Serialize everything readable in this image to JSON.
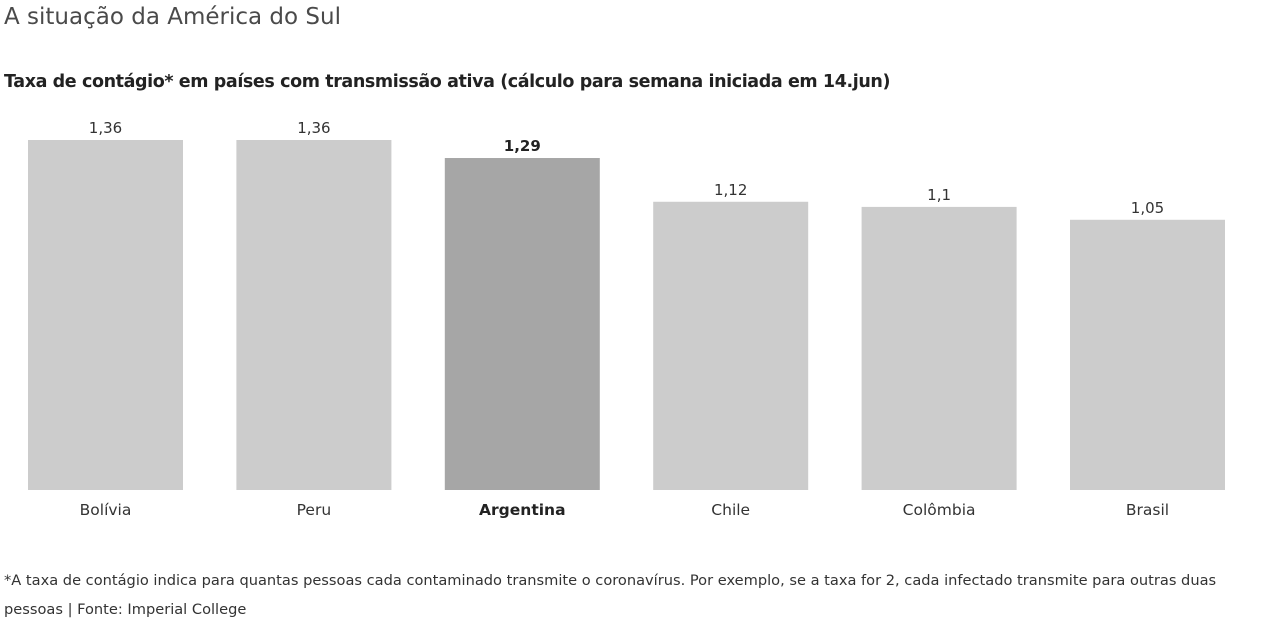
{
  "title": "A situação da América do Sul",
  "subtitle": "Taxa de contágio* em países com transmissão ativa (cálculo para semana iniciada em 14.jun)",
  "footnote": "*A taxa de contágio indica para quantas pessoas cada contaminado transmite o coronavírus. Por exemplo, se a taxa for 2, cada infectado transmite para outras duas pessoas | Fonte: Imperial College",
  "colors": {
    "bar": "#cccccc",
    "highlight": "#a6a6a6"
  },
  "chart_data": {
    "type": "bar",
    "title": "",
    "xlabel": "",
    "ylabel": "",
    "categories": [
      "Bolívia",
      "Peru",
      "Argentina",
      "Chile",
      "Colômbia",
      "Brasil"
    ],
    "values": [
      1.36,
      1.36,
      1.29,
      1.12,
      1.1,
      1.05
    ],
    "value_labels": [
      "1,36",
      "1,36",
      "1,29",
      "1,12",
      "1,1",
      "1,05"
    ],
    "highlighted_category": "Argentina",
    "ylim": [
      0,
      1.36
    ],
    "grid": false,
    "legend": "none"
  }
}
